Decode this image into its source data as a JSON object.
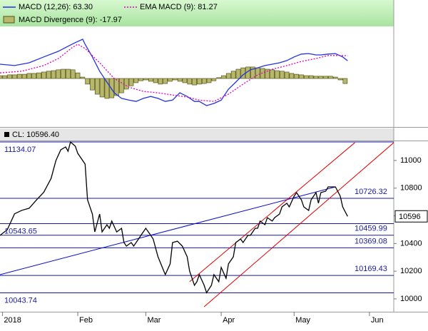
{
  "chart_data": [
    {
      "type": "macd",
      "xlim": [
        -1,
        161
      ],
      "ylim": [
        -173,
        280
      ],
      "series": [
        {
          "name": "MACD Divergence (9): -17.97",
          "type": "bar",
          "color": "#b8b86c",
          "x": [
            -1,
            1,
            3,
            5,
            7,
            9,
            11,
            13,
            15,
            17,
            19,
            21,
            23,
            25,
            27,
            29,
            31,
            33,
            35,
            37,
            39,
            41,
            43,
            45,
            47,
            49,
            51,
            53,
            55,
            57,
            59,
            61,
            63,
            65,
            67,
            69,
            71,
            73,
            75,
            77,
            79,
            81,
            83,
            85,
            87,
            89,
            91,
            93,
            95,
            97,
            99,
            101,
            103,
            105,
            107,
            109,
            111,
            113,
            115,
            117,
            119,
            121,
            123,
            125,
            127,
            129,
            131,
            133,
            135,
            137,
            139,
            141
          ],
          "values": [
            10,
            10,
            13,
            13,
            15,
            15,
            18,
            18,
            20,
            23,
            26,
            28,
            31,
            33,
            33,
            31,
            20,
            5,
            -20,
            -41,
            -56,
            -66,
            -71,
            -69,
            -61,
            -51,
            -38,
            -26,
            -15,
            -8,
            -5,
            -10,
            -15,
            -20,
            -18,
            -10,
            -5,
            -10,
            -15,
            -20,
            -23,
            -20,
            -18,
            -15,
            -8,
            3,
            10,
            18,
            26,
            33,
            38,
            41,
            41,
            38,
            36,
            33,
            31,
            28,
            26,
            23,
            18,
            15,
            13,
            10,
            10,
            8,
            8,
            8,
            8,
            5,
            -5,
            -17.97
          ]
        },
        {
          "name": "MACD (12,26): 63.30",
          "type": "line",
          "color": "#2233dd",
          "x": [
            -1,
            5,
            11,
            17,
            23,
            27,
            30,
            33,
            34,
            37,
            40,
            43,
            46,
            49,
            52,
            55,
            58,
            61,
            64,
            67,
            70,
            73,
            76,
            79,
            81,
            84,
            87,
            90,
            93,
            96,
            99,
            102,
            105,
            108,
            111,
            114,
            117,
            120,
            123,
            126,
            129,
            131,
            134,
            137,
            140,
            142
          ],
          "values": [
            51,
            46,
            56,
            77,
            97,
            115,
            128,
            140,
            122,
            77,
            26,
            -13,
            -51,
            -71,
            -77,
            -82,
            -71,
            -64,
            -71,
            -82,
            -77,
            -51,
            -64,
            -82,
            -82,
            -97,
            -89,
            -77,
            -38,
            -13,
            13,
            31,
            38,
            46,
            51,
            56,
            64,
            77,
            87,
            89,
            84,
            84,
            87,
            89,
            77,
            63.3
          ]
        },
        {
          "name": "EMA MACD (9): 81.27",
          "type": "line",
          "dashed": true,
          "color": "#e000c0",
          "x": [
            -1,
            8,
            17,
            23,
            29,
            31,
            34,
            40,
            46,
            52,
            58,
            64,
            70,
            76,
            81,
            87,
            93,
            99,
            105,
            111,
            117,
            123,
            129,
            134,
            139,
            142
          ],
          "values": [
            20,
            26,
            46,
            71,
            112,
            122,
            107,
            56,
            0,
            -31,
            -46,
            -51,
            -59,
            -66,
            -77,
            -82,
            -56,
            -20,
            13,
            33,
            46,
            61,
            71,
            82,
            82,
            81.27
          ]
        }
      ]
    },
    {
      "type": "line",
      "xlim": [
        -1,
        161
      ],
      "ylim": [
        9907,
        11139
      ],
      "xticks": [
        {
          "value": 0,
          "label": "2018"
        },
        {
          "value": 31,
          "label": "Feb"
        },
        {
          "value": 59,
          "label": "Mar"
        },
        {
          "value": 90,
          "label": "Apr"
        },
        {
          "value": 120,
          "label": "May"
        },
        {
          "value": 151,
          "label": "Jun"
        }
      ],
      "yticks": [
        10000,
        10200,
        10400,
        10600,
        10800,
        11000
      ],
      "levels": [
        11134.07,
        10726.32,
        10543.65,
        10459.99,
        10369.08,
        10169.43,
        10043.74
      ],
      "level_color": "#1a1a9c",
      "current": {
        "value": 10596.4,
        "label": "10596"
      },
      "trendlines": [
        {
          "color": "#0a0ad0",
          "x": [
            -1,
            137
          ],
          "values": [
            10175,
            10809
          ]
        },
        {
          "color": "#e00000",
          "x": [
            77,
            145
          ],
          "values": [
            10124,
            11129
          ]
        },
        {
          "color": "#e00000",
          "x": [
            83,
            161
          ],
          "values": [
            9943,
            11129
          ]
        }
      ],
      "series": [
        {
          "name": "CL: 10596.40",
          "color": "#000000",
          "x": [
            -1,
            2,
            5,
            8,
            11,
            14,
            17,
            20,
            22,
            24,
            26,
            27,
            28,
            30,
            31,
            34,
            35,
            37,
            38,
            40,
            41,
            43,
            44,
            45,
            47,
            49,
            50,
            51,
            53,
            54,
            56,
            57,
            59,
            61,
            62,
            64,
            67,
            69,
            70,
            72,
            74,
            76,
            77,
            79,
            80,
            81,
            83,
            84,
            86,
            87,
            89,
            90,
            92,
            93,
            95,
            96,
            98,
            99,
            101,
            102,
            104,
            105,
            106,
            108,
            109,
            111,
            112,
            114,
            115,
            117,
            118,
            120,
            121,
            123,
            124,
            126,
            127,
            129,
            130,
            131,
            133,
            134,
            136,
            137,
            139,
            140,
            142
          ],
          "values": [
            10459,
            10500,
            10615,
            10640,
            10655,
            10715,
            10770,
            10870,
            11000,
            11077,
            11098,
            11067,
            11134,
            11103,
            11052,
            10974,
            10716,
            10613,
            10484,
            10613,
            10484,
            10536,
            10510,
            10562,
            10484,
            10510,
            10407,
            10381,
            10407,
            10381,
            10433,
            10459,
            10510,
            10459,
            10433,
            10304,
            10175,
            10253,
            10407,
            10417,
            10381,
            10304,
            10201,
            10098,
            10124,
            10175,
            10098,
            10044,
            10098,
            10175,
            10124,
            10227,
            10149,
            10253,
            10304,
            10407,
            10433,
            10407,
            10459,
            10459,
            10510,
            10510,
            10562,
            10536,
            10587,
            10562,
            10587,
            10613,
            10665,
            10691,
            10665,
            10742,
            10768,
            10716,
            10665,
            10639,
            10716,
            10768,
            10691,
            10768,
            10778,
            10809,
            10809,
            10809,
            10742,
            10665,
            10596.4
          ]
        }
      ]
    }
  ]
}
